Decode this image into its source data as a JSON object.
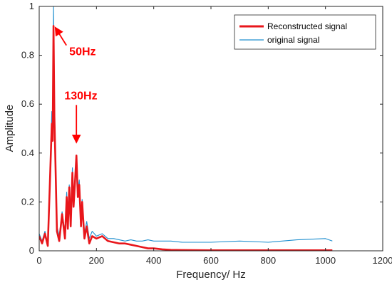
{
  "chart_data": {
    "type": "line",
    "title": "",
    "xlabel": "Frequency/ Hz",
    "ylabel": "Amplitude",
    "xlim": [
      0,
      1200
    ],
    "ylim": [
      0,
      1
    ],
    "x_ticks": [
      "0",
      "200",
      "400",
      "600",
      "800",
      "1000",
      "1200"
    ],
    "y_ticks": [
      "0",
      "0.2",
      "0.4",
      "0.6",
      "0.8",
      "1"
    ],
    "grid": false,
    "legend_position": "top-right",
    "series": [
      {
        "name": "Reconstructed signal",
        "color": "#e8161b",
        "x": [
          0,
          10,
          20,
          30,
          38,
          44,
          47,
          50,
          53,
          56,
          62,
          70,
          80,
          90,
          96,
          100,
          105,
          110,
          116,
          120,
          125,
          130,
          135,
          140,
          146,
          150,
          158,
          166,
          175,
          185,
          200,
          220,
          240,
          260,
          280,
          300,
          320,
          340,
          360,
          380,
          400,
          430,
          460,
          500,
          600,
          700,
          800,
          900,
          1000,
          1024
        ],
        "y": [
          0.06,
          0.03,
          0.07,
          0.02,
          0.3,
          0.52,
          0.45,
          0.92,
          0.55,
          0.4,
          0.08,
          0.04,
          0.15,
          0.05,
          0.22,
          0.09,
          0.26,
          0.1,
          0.32,
          0.18,
          0.28,
          0.39,
          0.22,
          0.27,
          0.1,
          0.2,
          0.05,
          0.1,
          0.03,
          0.06,
          0.05,
          0.06,
          0.04,
          0.035,
          0.03,
          0.03,
          0.025,
          0.02,
          0.015,
          0.01,
          0.01,
          0.006,
          0.004,
          0.003,
          0.002,
          0.002,
          0.002,
          0.002,
          0.002,
          0.002
        ]
      },
      {
        "name": "original signal",
        "color": "#1f8fcf",
        "x": [
          0,
          10,
          20,
          30,
          38,
          44,
          47,
          50,
          53,
          56,
          62,
          70,
          80,
          90,
          96,
          100,
          105,
          110,
          116,
          120,
          125,
          130,
          135,
          140,
          146,
          150,
          158,
          166,
          175,
          185,
          200,
          220,
          240,
          260,
          280,
          300,
          320,
          340,
          360,
          380,
          400,
          430,
          460,
          500,
          600,
          700,
          800,
          900,
          1000,
          1024
        ],
        "y": [
          0.07,
          0.04,
          0.08,
          0.03,
          0.32,
          0.57,
          0.48,
          1.0,
          0.6,
          0.45,
          0.1,
          0.06,
          0.16,
          0.07,
          0.24,
          0.11,
          0.27,
          0.12,
          0.34,
          0.2,
          0.3,
          0.38,
          0.24,
          0.29,
          0.12,
          0.21,
          0.07,
          0.12,
          0.05,
          0.08,
          0.06,
          0.07,
          0.05,
          0.05,
          0.045,
          0.04,
          0.045,
          0.04,
          0.04,
          0.045,
          0.04,
          0.04,
          0.04,
          0.035,
          0.035,
          0.04,
          0.035,
          0.045,
          0.05,
          0.04
        ]
      }
    ],
    "annotations": [
      {
        "text": "50Hz",
        "x": 50,
        "y": 0.92,
        "label_x": 105,
        "label_y": 0.8
      },
      {
        "text": "130Hz",
        "x": 130,
        "y": 0.44,
        "label_x": 88,
        "label_y": 0.62
      }
    ]
  }
}
